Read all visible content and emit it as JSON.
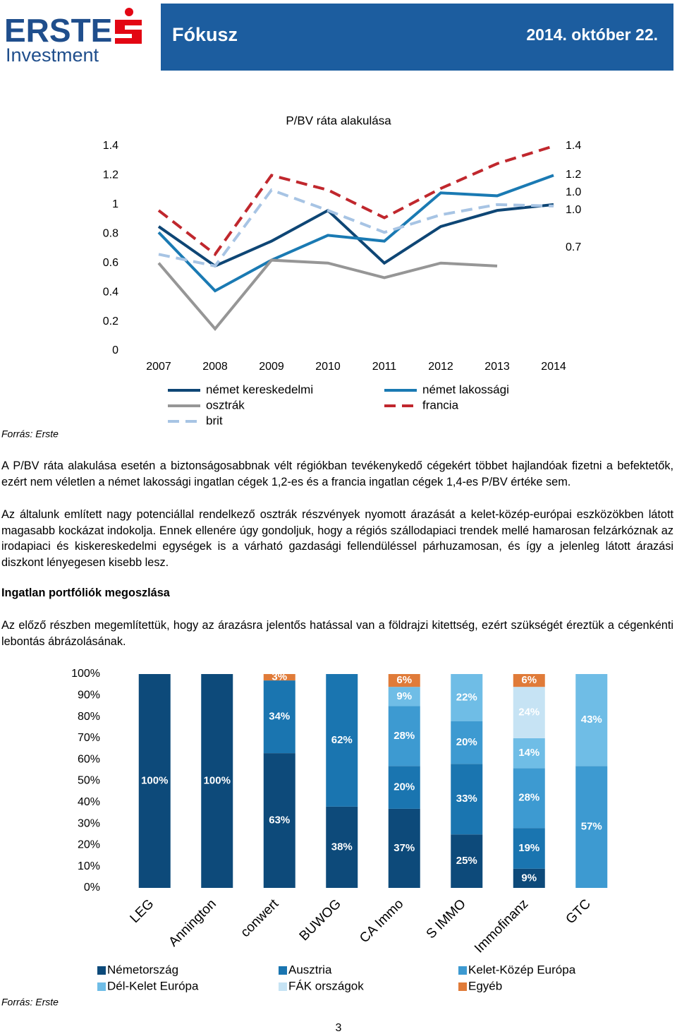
{
  "header": {
    "logo": "ERSTE",
    "logo_sub": "Investment",
    "title": "Fókusz",
    "date": "2014. október 22."
  },
  "chart_data": [
    {
      "type": "line",
      "title": "P/BV ráta alakulása",
      "categories": [
        "2007",
        "2008",
        "2009",
        "2010",
        "2011",
        "2012",
        "2013",
        "2014"
      ],
      "ylim": [
        0,
        1.4
      ],
      "yticks": [
        0,
        0.2,
        0.4,
        0.6,
        0.8,
        1,
        1.2,
        1.4
      ],
      "series": [
        {
          "name": "német kereskedelmi",
          "color": "#0e4675",
          "style": "solid",
          "end_label": "1.0",
          "values": [
            0.85,
            0.58,
            0.75,
            0.96,
            0.6,
            0.85,
            0.96,
            1.0
          ]
        },
        {
          "name": "német lakossági",
          "color": "#1a7ab3",
          "style": "solid",
          "end_label": "1.2",
          "values": [
            0.81,
            0.41,
            0.62,
            0.79,
            0.75,
            1.08,
            1.06,
            1.2
          ]
        },
        {
          "name": "osztrák",
          "color": "#969696",
          "style": "solid",
          "end_label": "0.7",
          "values": [
            0.6,
            0.15,
            0.62,
            0.6,
            0.5,
            0.6,
            0.58,
            null
          ]
        },
        {
          "name": "francia",
          "color": "#c0272d",
          "style": "dashed",
          "end_label": "1.4",
          "values": [
            0.96,
            0.66,
            1.2,
            1.1,
            0.91,
            1.11,
            1.28,
            1.4
          ]
        },
        {
          "name": "brit",
          "color": "#a7c4e4",
          "style": "dashed",
          "end_label": "1.0",
          "values": [
            0.66,
            0.58,
            1.1,
            0.96,
            0.81,
            0.93,
            1.0,
            0.99
          ]
        }
      ],
      "source": "Forrás: Erste"
    },
    {
      "type": "stacked_bar",
      "categories": [
        "LEG",
        "Annington",
        "conwert",
        "BUWOG",
        "CA Immo",
        "S IMMO",
        "Immofinanz",
        "GTC"
      ],
      "ylim": [
        0,
        100
      ],
      "yticks": [
        {
          "value": 0,
          "label": "0%"
        },
        {
          "value": 10,
          "label": "10%"
        },
        {
          "value": 20,
          "label": "20%"
        },
        {
          "value": 30,
          "label": "30%"
        },
        {
          "value": 40,
          "label": "40%"
        },
        {
          "value": 50,
          "label": "50%"
        },
        {
          "value": 60,
          "label": "60%"
        },
        {
          "value": 70,
          "label": "70%"
        },
        {
          "value": 80,
          "label": "80%"
        },
        {
          "value": 90,
          "label": "90%"
        },
        {
          "value": 100,
          "label": "100%"
        }
      ],
      "series": [
        {
          "name": "Németország",
          "color": "#0d4a7a",
          "values": [
            100,
            100,
            63,
            38,
            37,
            25,
            9,
            null
          ],
          "value_labels": [
            "100%",
            "100%",
            "63%",
            "38%",
            "37%",
            "25%",
            "9%",
            null
          ]
        },
        {
          "name": "Ausztria",
          "color": "#1a75b0",
          "values": [
            null,
            null,
            34,
            62,
            20,
            33,
            19,
            null
          ],
          "value_labels": [
            null,
            null,
            "34%",
            "62%",
            "20%",
            "33%",
            "19%",
            null
          ]
        },
        {
          "name": "Kelet-Közép Európa",
          "color": "#3d9ad1",
          "values": [
            null,
            null,
            null,
            null,
            28,
            20,
            28,
            57
          ],
          "value_labels": [
            null,
            null,
            null,
            null,
            "28%",
            "20%",
            "28%",
            "57%"
          ]
        },
        {
          "name": "Dél-Kelet Európa",
          "color": "#6fbde6",
          "values": [
            null,
            null,
            null,
            null,
            9,
            22,
            14,
            43
          ],
          "value_labels": [
            null,
            null,
            null,
            null,
            "9%",
            "22%",
            "14%",
            "43%"
          ]
        },
        {
          "name": "FÁK országok",
          "color": "#c6e3f4",
          "values": [
            null,
            null,
            null,
            null,
            null,
            null,
            24,
            null
          ],
          "value_labels": [
            null,
            null,
            null,
            null,
            null,
            null,
            "24%",
            null
          ]
        },
        {
          "name": "Egyéb",
          "color": "#e07b39",
          "values": [
            null,
            null,
            3,
            null,
            6,
            null,
            6,
            null
          ],
          "value_labels": [
            null,
            null,
            "3%",
            null,
            "6%",
            null,
            "6%",
            null
          ]
        }
      ],
      "source": "Forrás: Erste"
    }
  ],
  "paragraphs": [
    "A P/BV ráta alakulása esetén a biztonságosabbnak vélt régiókban tevékenykedő cégekért többet hajlandóak fizetni a befektetők, ezért nem véletlen a német lakossági ingatlan cégek 1,2-es és a francia ingatlan cégek 1,4-es P/BV értéke sem.",
    "Az általunk említett nagy potenciállal rendelkező osztrák részvények nyomott árazását a kelet-közép-európai eszközökben látott magasabb kockázat indokolja. Ennek ellenére úgy gondoljuk, hogy a régiós szállodapiaci trendek mellé hamarosan felzárkóznak az irodapiaci és kiskereskedelmi egységek is a várható gazdasági fellendüléssel párhuzamosan, és így a jelenleg látott árazási diszkont lényegesen kisebb lesz."
  ],
  "section_title": "Ingatlan portfóliók megoszlása",
  "section_paragraph": "Az előző részben megemlítettük, hogy az árazásra jelentős hatással van a földrajzi kitettség, ezért szükségét éreztük a cégenkénti lebontás ábrázolásának.",
  "page_number": "3"
}
